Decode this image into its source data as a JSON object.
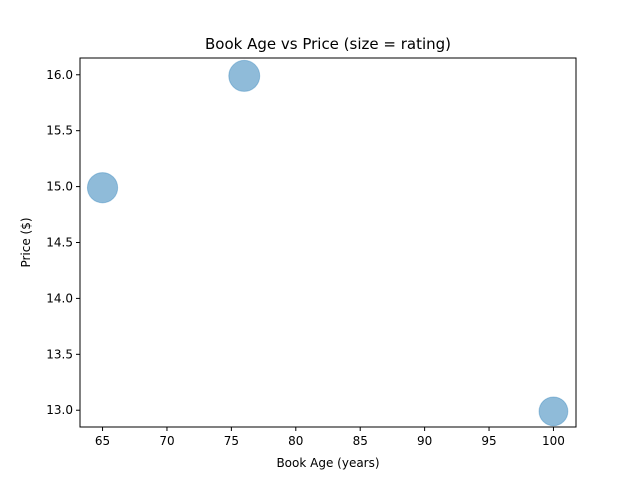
{
  "chart_data": {
    "type": "scatter",
    "title": "Book Age vs Price (size = rating)",
    "xlabel": "Book Age (years)",
    "ylabel": "Price ($)",
    "xlim": [
      63.25,
      101.75
    ],
    "ylim": [
      12.85,
      16.15
    ],
    "xticks": [
      65,
      70,
      75,
      80,
      85,
      90,
      95,
      100
    ],
    "yticks": [
      13.0,
      13.5,
      14.0,
      14.5,
      15.0,
      15.5,
      16.0
    ],
    "xtick_labels": [
      "65",
      "70",
      "75",
      "80",
      "85",
      "90",
      "95",
      "100"
    ],
    "ytick_labels": [
      "13.0",
      "13.5",
      "14.0",
      "14.5",
      "15.0",
      "15.5",
      "16.0"
    ],
    "grid": false,
    "points": [
      {
        "x": 65,
        "y": 14.99,
        "rating": 4.2
      },
      {
        "x": 76,
        "y": 15.99,
        "rating": 4.3
      },
      {
        "x": 100,
        "y": 12.99,
        "rating": 4.0
      }
    ],
    "marker_color": "#1f77b4",
    "marker_alpha": 0.5
  }
}
